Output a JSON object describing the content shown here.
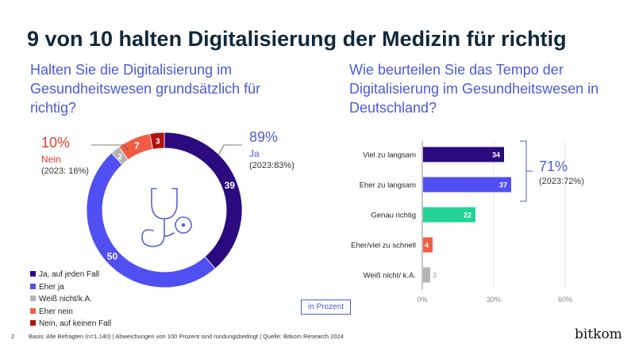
{
  "title": "9 von 10 halten Digitalisierung der Medizin für richtig",
  "page_number": "2",
  "footer": "Basis: Alle Befragten (n=1.140) | Abweichungen von 100 Prozent sind rundungsbedingt  | Quelle: Bitkom Research 2024",
  "logo": "bitkom",
  "unit_label": "in Prozent",
  "colors": {
    "dark_purple": "#2b0a80",
    "blue": "#4f4ff2",
    "gray": "#b4b4b4",
    "orange": "#f25c45",
    "dark_red": "#b0120c",
    "green": "#22d196",
    "accent": "#4a5bd6"
  },
  "chart_data": [
    {
      "type": "pie",
      "donut": true,
      "title": "Halten Sie die Digitalisierung im Gesundheitswesen grundsätzlich für richtig?",
      "icon": "stethoscope-icon",
      "slices": [
        {
          "name": "Ja, auf jeden Fall",
          "value": 39,
          "color": "#2b0a80"
        },
        {
          "name": "Eher ja",
          "value": 50,
          "color": "#4f4ff2"
        },
        {
          "name": "Weiß nicht/k.A.",
          "value": 2,
          "color": "#b4b4b4"
        },
        {
          "name": "Eher nein",
          "value": 7,
          "color": "#f25c45"
        },
        {
          "name": "Nein, auf keinen Fall",
          "value": 3,
          "color": "#b0120c"
        }
      ],
      "legend_placement": "bottom-left",
      "annotations": {
        "ja": {
          "pct": "89%",
          "label": "Ja",
          "prev": "(2023:83%)"
        },
        "nein": {
          "pct": "10%",
          "label": "Nein",
          "prev": "(2023: 16%)"
        }
      }
    },
    {
      "type": "bar",
      "orientation": "horizontal",
      "title": "Wie beurteilen Sie das Tempo der Digitalisierung im Gesundheitswesen in Deutschland?",
      "categories": [
        "Viel zu langsam",
        "Eher zu langsam",
        "Genau richtig",
        "Eher/viel zu schnell",
        "Weiß nicht/ k.A."
      ],
      "values": [
        34,
        37,
        22,
        4,
        3
      ],
      "bar_colors": [
        "#2b0a80",
        "#4f4ff2",
        "#22d196",
        "#f25c45",
        "#b4b4b4"
      ],
      "xlim": [
        0,
        80
      ],
      "xticks": [
        "0%",
        "30%",
        "60%"
      ],
      "xtick_values": [
        0,
        30,
        60
      ],
      "grid": true,
      "annotation": {
        "pct": "71%",
        "prev": "(2023:72%)"
      }
    }
  ]
}
